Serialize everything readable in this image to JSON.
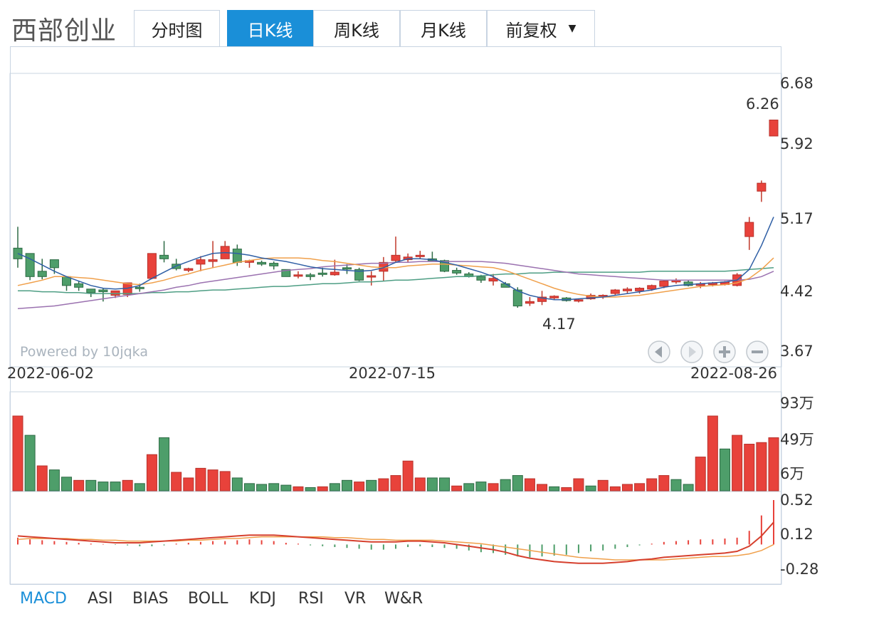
{
  "stock_name": "西部创业",
  "tabs": [
    {
      "label": "分时图",
      "active": false
    },
    {
      "label": "日K线",
      "active": true
    },
    {
      "label": "周K线",
      "active": false
    },
    {
      "label": "月K线",
      "active": false
    },
    {
      "label": "前复权",
      "active": false,
      "dropdown": true
    }
  ],
  "indicator_tabs": [
    {
      "label": "MACD",
      "active": true
    },
    {
      "label": "ASI",
      "active": false
    },
    {
      "label": "BIAS",
      "active": false
    },
    {
      "label": "BOLL",
      "active": false
    },
    {
      "label": "KDJ",
      "active": false
    },
    {
      "label": "RSI",
      "active": false
    },
    {
      "label": "VR",
      "active": false
    },
    {
      "label": "W&R",
      "active": false
    }
  ],
  "watermark": "Powered by 10jqka",
  "nav_icons": [
    "left-arrow-icon",
    "right-arrow-icon",
    "zoom-in-icon",
    "zoom-out-icon"
  ],
  "colors": {
    "up": "#e8423b",
    "down": "#4e9e6a",
    "ma5": "#2f5fa5",
    "ma10": "#f0a04b",
    "ma20": "#9b72b0",
    "ma30": "#4e9e84",
    "dif": "#d6402e",
    "dea": "#f0a04b",
    "accent": "#1a8fd8"
  },
  "chart_data": [
    {
      "type": "candlestick",
      "x_dates_shown": [
        "2022-06-02",
        "2022-07-15",
        "2022-08-26"
      ],
      "y_ticks": [
        6.68,
        5.92,
        5.17,
        4.42,
        3.67
      ],
      "ylim": [
        3.67,
        6.68
      ],
      "annotations": [
        {
          "label": "6.26",
          "value": 6.26,
          "note": "high"
        },
        {
          "label": "4.17",
          "value": 4.17,
          "note": "low"
        }
      ],
      "candles": [
        [
          4.82,
          5.06,
          4.6,
          4.7
        ],
        [
          4.76,
          4.76,
          4.46,
          4.5
        ],
        [
          4.56,
          4.7,
          4.47,
          4.5
        ],
        [
          4.69,
          4.69,
          4.53,
          4.6
        ],
        [
          4.5,
          4.5,
          4.34,
          4.4
        ],
        [
          4.42,
          4.45,
          4.34,
          4.38
        ],
        [
          4.36,
          4.36,
          4.27,
          4.32
        ],
        [
          4.35,
          4.37,
          4.22,
          4.33
        ],
        [
          4.29,
          4.34,
          4.26,
          4.34
        ],
        [
          4.3,
          4.4,
          4.27,
          4.43
        ],
        [
          4.38,
          4.42,
          4.33,
          4.37
        ],
        [
          4.48,
          4.76,
          4.47,
          4.76
        ],
        [
          4.74,
          4.9,
          4.66,
          4.7
        ],
        [
          4.64,
          4.7,
          4.57,
          4.59
        ],
        [
          4.57,
          4.6,
          4.55,
          4.59
        ],
        [
          4.64,
          4.73,
          4.56,
          4.69
        ],
        [
          4.67,
          4.9,
          4.6,
          4.69
        ],
        [
          4.7,
          4.9,
          4.7,
          4.84
        ],
        [
          4.81,
          4.86,
          4.62,
          4.66
        ],
        [
          4.66,
          4.69,
          4.6,
          4.68
        ],
        [
          4.66,
          4.68,
          4.62,
          4.64
        ],
        [
          4.65,
          4.67,
          4.58,
          4.62
        ],
        [
          4.58,
          4.58,
          4.51,
          4.5
        ],
        [
          4.52,
          4.56,
          4.48,
          4.52
        ],
        [
          4.52,
          4.54,
          4.46,
          4.5
        ],
        [
          4.54,
          4.6,
          4.5,
          4.53
        ],
        [
          4.52,
          4.69,
          4.51,
          4.55
        ],
        [
          4.6,
          4.64,
          4.53,
          4.59
        ],
        [
          4.58,
          4.6,
          4.45,
          4.46
        ],
        [
          4.5,
          4.56,
          4.4,
          4.51
        ],
        [
          4.56,
          4.72,
          4.45,
          4.66
        ],
        [
          4.68,
          4.95,
          4.66,
          4.74
        ],
        [
          4.69,
          4.76,
          4.66,
          4.72
        ],
        [
          4.73,
          4.79,
          4.7,
          4.74
        ],
        [
          4.7,
          4.78,
          4.68,
          4.68
        ],
        [
          4.68,
          4.69,
          4.55,
          4.56
        ],
        [
          4.57,
          4.6,
          4.52,
          4.54
        ],
        [
          4.53,
          4.55,
          4.49,
          4.5
        ],
        [
          4.5,
          4.52,
          4.43,
          4.46
        ],
        [
          4.45,
          4.53,
          4.4,
          4.48
        ],
        [
          4.42,
          4.44,
          4.39,
          4.38
        ],
        [
          4.35,
          4.38,
          4.15,
          4.17
        ],
        [
          4.2,
          4.27,
          4.17,
          4.22
        ],
        [
          4.22,
          4.34,
          4.18,
          4.27
        ],
        [
          4.26,
          4.29,
          4.24,
          4.28
        ],
        [
          4.26,
          4.27,
          4.22,
          4.23
        ],
        [
          4.23,
          4.25,
          4.21,
          4.24
        ],
        [
          4.25,
          4.31,
          4.24,
          4.29
        ],
        [
          4.27,
          4.3,
          4.25,
          4.29
        ],
        [
          4.31,
          4.36,
          4.29,
          4.35
        ],
        [
          4.34,
          4.38,
          4.31,
          4.36
        ],
        [
          4.34,
          4.38,
          4.31,
          4.37
        ],
        [
          4.36,
          4.41,
          4.34,
          4.4
        ],
        [
          4.39,
          4.46,
          4.37,
          4.45
        ],
        [
          4.44,
          4.48,
          4.42,
          4.46
        ],
        [
          4.44,
          4.46,
          4.39,
          4.4
        ],
        [
          4.4,
          4.44,
          4.37,
          4.42
        ],
        [
          4.41,
          4.44,
          4.39,
          4.43
        ],
        [
          4.41,
          4.45,
          4.4,
          4.44
        ],
        [
          4.4,
          4.54,
          4.39,
          4.52
        ],
        [
          4.95,
          5.17,
          4.8,
          5.11
        ],
        [
          5.46,
          5.58,
          5.34,
          5.55
        ],
        [
          6.08,
          6.26,
          6.08,
          6.26
        ]
      ],
      "ma5": [
        4.76,
        4.7,
        4.63,
        4.56,
        4.5,
        4.45,
        4.4,
        4.37,
        4.36,
        4.37,
        4.4,
        4.48,
        4.55,
        4.62,
        4.67,
        4.72,
        4.76,
        4.77,
        4.76,
        4.74,
        4.71,
        4.69,
        4.67,
        4.64,
        4.61,
        4.59,
        4.58,
        4.57,
        4.56,
        4.57,
        4.6,
        4.66,
        4.7,
        4.7,
        4.69,
        4.66,
        4.63,
        4.59,
        4.55,
        4.5,
        4.42,
        4.34,
        4.29,
        4.26,
        4.24,
        4.24,
        4.25,
        4.26,
        4.27,
        4.29,
        4.31,
        4.33,
        4.35,
        4.38,
        4.4,
        4.41,
        4.42,
        4.43,
        4.44,
        4.46,
        4.58,
        4.85,
        5.17
      ],
      "ma10": [
        4.4,
        4.43,
        4.46,
        4.5,
        4.5,
        4.49,
        4.48,
        4.46,
        4.44,
        4.42,
        4.41,
        4.43,
        4.46,
        4.5,
        4.53,
        4.57,
        4.6,
        4.63,
        4.66,
        4.68,
        4.7,
        4.71,
        4.71,
        4.71,
        4.7,
        4.68,
        4.67,
        4.65,
        4.63,
        4.61,
        4.6,
        4.6,
        4.62,
        4.63,
        4.64,
        4.64,
        4.63,
        4.62,
        4.61,
        4.6,
        4.57,
        4.52,
        4.47,
        4.42,
        4.37,
        4.33,
        4.3,
        4.28,
        4.27,
        4.27,
        4.28,
        4.29,
        4.31,
        4.33,
        4.35,
        4.37,
        4.39,
        4.4,
        4.41,
        4.43,
        4.48,
        4.58,
        4.71
      ],
      "ma20": [
        4.14,
        4.15,
        4.16,
        4.17,
        4.19,
        4.21,
        4.23,
        4.25,
        4.27,
        4.29,
        4.31,
        4.33,
        4.35,
        4.38,
        4.4,
        4.43,
        4.45,
        4.47,
        4.49,
        4.51,
        4.53,
        4.55,
        4.57,
        4.58,
        4.59,
        4.61,
        4.62,
        4.63,
        4.64,
        4.65,
        4.65,
        4.66,
        4.66,
        4.67,
        4.67,
        4.67,
        4.67,
        4.67,
        4.67,
        4.66,
        4.65,
        4.63,
        4.61,
        4.59,
        4.57,
        4.55,
        4.53,
        4.52,
        4.51,
        4.5,
        4.49,
        4.48,
        4.47,
        4.46,
        4.46,
        4.46,
        4.46,
        4.46,
        4.46,
        4.46,
        4.47,
        4.5,
        4.56
      ],
      "ma30": [
        4.34,
        4.34,
        4.33,
        4.33,
        4.32,
        4.32,
        4.31,
        4.31,
        4.31,
        4.31,
        4.31,
        4.32,
        4.32,
        4.33,
        4.33,
        4.34,
        4.35,
        4.35,
        4.36,
        4.37,
        4.38,
        4.39,
        4.39,
        4.4,
        4.41,
        4.42,
        4.42,
        4.43,
        4.44,
        4.44,
        4.45,
        4.46,
        4.46,
        4.47,
        4.48,
        4.49,
        4.5,
        4.5,
        4.51,
        4.52,
        4.53,
        4.53,
        4.54,
        4.54,
        4.55,
        4.55,
        4.55,
        4.55,
        4.55,
        4.55,
        4.55,
        4.55,
        4.56,
        4.56,
        4.56,
        4.56,
        4.56,
        4.56,
        4.56,
        4.57,
        4.58,
        4.59,
        4.6
      ]
    },
    {
      "type": "bar",
      "name": "volume",
      "y_ticks": [
        "93万",
        "49万",
        "6万"
      ],
      "ylim": [
        0,
        93
      ],
      "values": [
        93,
        69,
        31,
        26,
        17,
        13,
        13,
        11,
        11,
        13,
        9,
        45,
        66,
        23,
        16,
        28,
        26,
        24,
        16,
        9,
        8,
        9,
        7,
        5,
        4,
        5,
        9,
        13,
        11,
        13,
        15,
        19,
        37,
        16,
        16,
        16,
        6,
        9,
        11,
        9,
        14,
        19,
        15,
        8,
        5,
        4,
        15,
        6,
        13,
        5,
        8,
        9,
        15,
        19,
        14,
        8,
        42,
        93,
        52,
        69,
        58,
        60,
        66
      ],
      "directions": [
        "u",
        "d",
        "u",
        "d",
        "d",
        "u",
        "d",
        "d",
        "d",
        "u",
        "d",
        "u",
        "d",
        "u",
        "u",
        "u",
        "u",
        "u",
        "d",
        "d",
        "d",
        "d",
        "d",
        "u",
        "d",
        "u",
        "d",
        "d",
        "u",
        "d",
        "u",
        "u",
        "u",
        "u",
        "d",
        "d",
        "u",
        "d",
        "d",
        "u",
        "d",
        "d",
        "u",
        "u",
        "d",
        "u",
        "u",
        "d",
        "u",
        "u",
        "u",
        "u",
        "u",
        "u",
        "d",
        "d",
        "u",
        "u",
        "d",
        "u",
        "u",
        "u",
        "u"
      ]
    },
    {
      "type": "macd",
      "y_ticks": [
        0.52,
        0.12,
        -0.28
      ],
      "ylim": [
        -0.36,
        0.6
      ],
      "dif": [
        0.1,
        0.09,
        0.08,
        0.07,
        0.06,
        0.05,
        0.04,
        0.03,
        0.02,
        0.02,
        0.02,
        0.03,
        0.04,
        0.05,
        0.06,
        0.07,
        0.08,
        0.09,
        0.1,
        0.11,
        0.11,
        0.11,
        0.1,
        0.09,
        0.08,
        0.07,
        0.06,
        0.05,
        0.04,
        0.03,
        0.03,
        0.03,
        0.04,
        0.04,
        0.03,
        0.02,
        0.0,
        -0.02,
        -0.04,
        -0.06,
        -0.09,
        -0.13,
        -0.16,
        -0.18,
        -0.2,
        -0.21,
        -0.22,
        -0.22,
        -0.22,
        -0.21,
        -0.2,
        -0.18,
        -0.17,
        -0.15,
        -0.14,
        -0.13,
        -0.12,
        -0.11,
        -0.1,
        -0.08,
        -0.02,
        0.1,
        0.26
      ],
      "dea": [
        0.06,
        0.07,
        0.07,
        0.07,
        0.07,
        0.06,
        0.06,
        0.05,
        0.05,
        0.04,
        0.04,
        0.04,
        0.04,
        0.04,
        0.05,
        0.05,
        0.06,
        0.07,
        0.07,
        0.08,
        0.09,
        0.09,
        0.09,
        0.09,
        0.09,
        0.09,
        0.08,
        0.08,
        0.07,
        0.06,
        0.06,
        0.05,
        0.05,
        0.05,
        0.05,
        0.04,
        0.03,
        0.02,
        0.01,
        -0.01,
        -0.03,
        -0.05,
        -0.07,
        -0.09,
        -0.11,
        -0.13,
        -0.15,
        -0.16,
        -0.17,
        -0.18,
        -0.18,
        -0.18,
        -0.18,
        -0.18,
        -0.17,
        -0.16,
        -0.15,
        -0.14,
        -0.14,
        -0.13,
        -0.11,
        -0.07,
        0.0
      ],
      "histogram": [
        0.08,
        0.06,
        0.05,
        0.04,
        0.03,
        0.02,
        0.01,
        0.005,
        -0.005,
        -0.01,
        -0.02,
        -0.02,
        -0.01,
        0.01,
        0.02,
        0.03,
        0.04,
        0.04,
        0.05,
        0.06,
        0.05,
        0.04,
        0.02,
        0.01,
        -0.01,
        -0.02,
        -0.03,
        -0.04,
        -0.05,
        -0.06,
        -0.06,
        -0.05,
        -0.03,
        -0.02,
        -0.03,
        -0.04,
        -0.05,
        -0.07,
        -0.09,
        -0.1,
        -0.12,
        -0.14,
        -0.15,
        -0.14,
        -0.13,
        -0.12,
        -0.1,
        -0.08,
        -0.07,
        -0.05,
        -0.03,
        -0.01,
        0.01,
        0.03,
        0.04,
        0.05,
        0.06,
        0.06,
        0.07,
        0.08,
        0.16,
        0.34,
        0.52
      ]
    }
  ]
}
